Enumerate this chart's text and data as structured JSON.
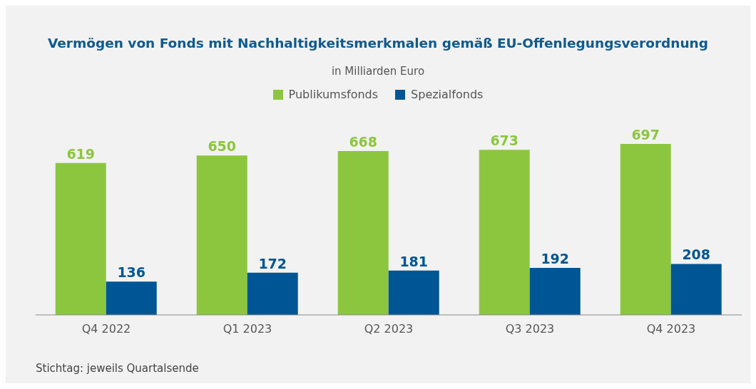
{
  "chart_data": {
    "type": "bar",
    "title": "Vermögen von Fonds mit Nachhaltigkeitsmerkmalen gemäß EU-Offenlegungsverordnung",
    "subtitle": "in Milliarden Euro",
    "categories": [
      "Q4 2022",
      "Q1 2023",
      "Q2 2023",
      "Q3 2023",
      "Q4 2023"
    ],
    "series": [
      {
        "name": "Publikumsfonds",
        "color": "#8cc63f",
        "values": [
          619,
          650,
          668,
          673,
          697
        ]
      },
      {
        "name": "Spezialfonds",
        "color": "#005694",
        "values": [
          136,
          172,
          181,
          192,
          208
        ]
      }
    ],
    "data_labels": true,
    "legend": "top",
    "grid": false,
    "annotations": [
      "Stichtag: jeweils Quartalsende"
    ]
  }
}
